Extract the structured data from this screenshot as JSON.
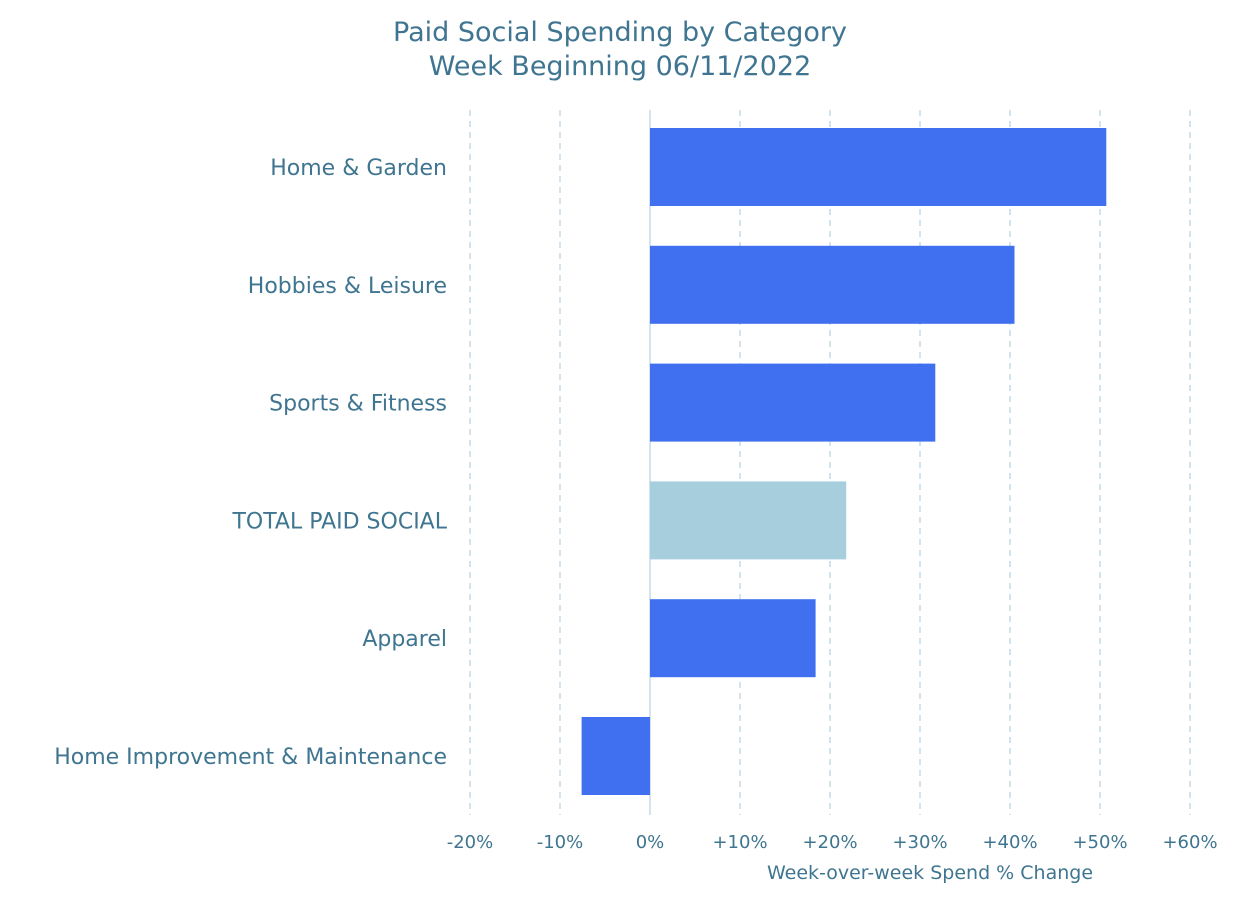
{
  "chart_data": {
    "type": "bar",
    "orientation": "horizontal",
    "title": "Paid Social Spending by Category",
    "subtitle": "Week Beginning 06/11/2022",
    "xlabel": "Week-over-week Spend % Change",
    "ylabel": "",
    "xlim": [
      -20,
      60
    ],
    "xticks": [
      -20,
      -10,
      0,
      10,
      20,
      30,
      40,
      50,
      60
    ],
    "xtick_labels": [
      "-20%",
      "-10%",
      "0%",
      "+10%",
      "+20%",
      "+30%",
      "+40%",
      "+50%",
      "+60%"
    ],
    "grid": "vertical dashed",
    "categories": [
      "Home & Garden",
      "Hobbies & Leisure",
      "Sports & Fitness",
      "TOTAL PAID SOCIAL",
      "Apparel",
      "Home Improvement & Maintenance"
    ],
    "values": [
      50.7,
      40.5,
      31.7,
      21.8,
      18.4,
      -7.6
    ],
    "colors": [
      "#4070f0",
      "#4070f0",
      "#4070f0",
      "#a6cedc",
      "#4070f0",
      "#4070f0"
    ],
    "text_color": "#3f7590",
    "grid_color": "#c5dcea"
  }
}
